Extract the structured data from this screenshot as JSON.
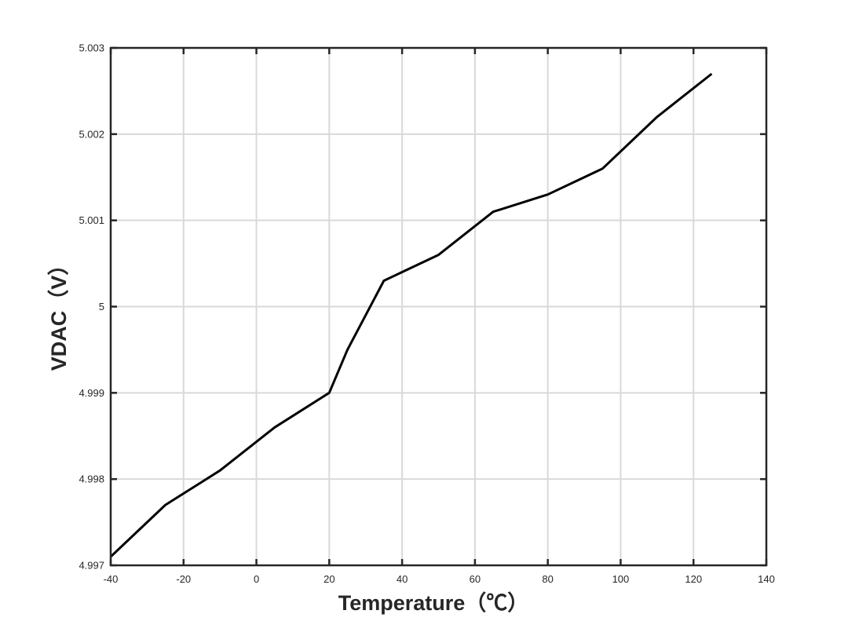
{
  "chart_data": {
    "type": "line",
    "xlabel": "Temperature（℃）",
    "ylabel": "VDAC（V）",
    "xlim": [
      -40,
      140
    ],
    "ylim": [
      4.997,
      5.003
    ],
    "xticks": [
      -40,
      -20,
      0,
      20,
      40,
      60,
      80,
      100,
      120,
      140
    ],
    "yticks": [
      4.997,
      4.998,
      4.999,
      5,
      5.001,
      5.002,
      5.003
    ],
    "xtick_labels": [
      "-40",
      "-20",
      "0",
      "20",
      "40",
      "60",
      "80",
      "100",
      "120",
      "140"
    ],
    "ytick_labels": [
      "4.997",
      "4.998",
      "4.999",
      "5",
      "5.001",
      "5.002",
      "5.003"
    ],
    "grid": true,
    "series": [
      {
        "color": "#000000",
        "x": [
          -40,
          -25,
          -10,
          5,
          20,
          25,
          35,
          50,
          65,
          80,
          95,
          110,
          125
        ],
        "y": [
          4.9971,
          4.9977,
          4.9981,
          4.9986,
          4.999,
          4.9995,
          5.0003,
          5.0006,
          5.0011,
          5.0013,
          5.0016,
          5.0022,
          5.0027
        ]
      }
    ]
  }
}
